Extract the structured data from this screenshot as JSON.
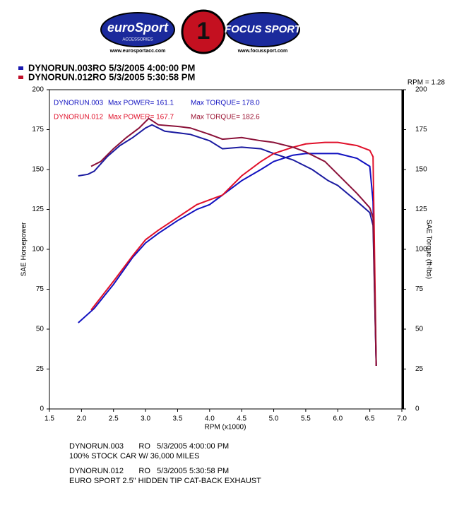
{
  "logos": {
    "left": "euroSport",
    "left_sub": "ACCESSORIES",
    "left_url": "www.eurosportacc.com",
    "center": "1",
    "right": "FOCUS SPORT",
    "right_url": "www.focussport.com"
  },
  "chart_data": {
    "type": "line",
    "header_lines": [
      {
        "text": "DYNORUN.003RO  5/3/2005 4:00:00 PM",
        "color": "#1a1ab0"
      },
      {
        "text": "DYNORUN.012RO  5/3/2005 5:30:58 PM",
        "color": "#c0102a"
      }
    ],
    "rpm_note": "RPM = 1.28",
    "annotations": [
      {
        "text": "DYNORUN.003",
        "color": "#1010c0"
      },
      {
        "text": "Max POWER= 161.1",
        "color": "#1010c0"
      },
      {
        "text": "Max TORQUE= 178.0",
        "color": "#1010c0"
      },
      {
        "text": "DYNORUN.012",
        "color": "#e0102a"
      },
      {
        "text": "Max POWER= 167.7",
        "color": "#e0102a"
      },
      {
        "text": "Max TORQUE= 182.6",
        "color": "#9a1030"
      }
    ],
    "xlabel": "RPM (x1000)",
    "ylabel": "SAE Horsepower",
    "y2label": "SAE Torque (ft-lbs)",
    "xlim": [
      1.5,
      7.0
    ],
    "xticks": [
      1.5,
      {
        "value": 2,
        "label": "2.0"
      },
      2.5,
      {
        "value": 3,
        "label": "3.0"
      },
      3.5,
      {
        "value": 4,
        "label": "4.0"
      },
      4.5,
      {
        "value": 5,
        "label": "5.0"
      },
      5.5,
      {
        "value": 6,
        "label": "6.0"
      },
      6.5,
      {
        "value": 7,
        "label": "7.0"
      }
    ],
    "ylim": [
      0,
      200
    ],
    "yticks": [
      0,
      25,
      50,
      75,
      100,
      125,
      150,
      175,
      200
    ],
    "y2lim": [
      0,
      200
    ],
    "y2ticks": [
      0,
      25,
      50,
      75,
      100,
      125,
      150,
      175,
      200
    ],
    "series": [
      {
        "color": "#1010c0",
        "x": [
          1.95,
          2.2,
          2.5,
          2.8,
          3.0,
          3.2,
          3.5,
          3.8,
          4.0,
          4.3,
          4.5,
          4.8,
          5.0,
          5.3,
          5.5,
          5.85,
          6.0,
          6.3,
          6.5,
          6.55,
          6.6
        ],
        "values": [
          54,
          63,
          78,
          95,
          104,
          110,
          118,
          125,
          128,
          137,
          143,
          150,
          155,
          159,
          160,
          160,
          160,
          157,
          152,
          130,
          27
        ]
      },
      {
        "color": "#1a1aa0",
        "axis": "y2",
        "x": [
          1.95,
          2.1,
          2.2,
          2.4,
          2.6,
          2.8,
          3.0,
          3.1,
          3.3,
          3.5,
          3.7,
          4.0,
          4.2,
          4.5,
          4.8,
          5.0,
          5.3,
          5.6,
          5.85,
          6.0,
          6.3,
          6.5,
          6.55,
          6.6
        ],
        "values": [
          146,
          147,
          149,
          158,
          165,
          170,
          176,
          178,
          174,
          173,
          172,
          168,
          163,
          164,
          163,
          160,
          156,
          150,
          143,
          140,
          130,
          123,
          115,
          27
        ]
      },
      {
        "color": "#e0102a",
        "x": [
          2.15,
          2.5,
          2.8,
          3.0,
          3.2,
          3.5,
          3.8,
          4.0,
          4.2,
          4.5,
          4.8,
          5.0,
          5.3,
          5.5,
          5.8,
          6.0,
          6.3,
          6.5,
          6.55,
          6.6
        ],
        "values": [
          62,
          80,
          96,
          106,
          112,
          120,
          128,
          131,
          134,
          146,
          155,
          160,
          164,
          166,
          167,
          167,
          165,
          162,
          158,
          27
        ]
      },
      {
        "color": "#8a1038",
        "axis": "y2",
        "x": [
          2.15,
          2.3,
          2.5,
          2.7,
          2.9,
          3.05,
          3.2,
          3.5,
          3.7,
          4.0,
          4.2,
          4.5,
          4.8,
          5.0,
          5.3,
          5.5,
          5.8,
          6.0,
          6.3,
          6.5,
          6.55,
          6.6
        ],
        "values": [
          152,
          155,
          163,
          170,
          176,
          182,
          178,
          177,
          176,
          172,
          169,
          170,
          168,
          167,
          164,
          161,
          155,
          147,
          135,
          126,
          120,
          27
        ]
      }
    ],
    "footer": [
      "DYNORUN.003       RO   5/3/2005 4:00:00 PM",
      "100% STOCK CAR W/ 36,000 MILES",
      "DYNORUN.012       RO   5/3/2005 5:30:58 PM",
      "EURO SPORT 2.5\" HIDDEN TIP CAT-BACK EXHAUST"
    ]
  }
}
